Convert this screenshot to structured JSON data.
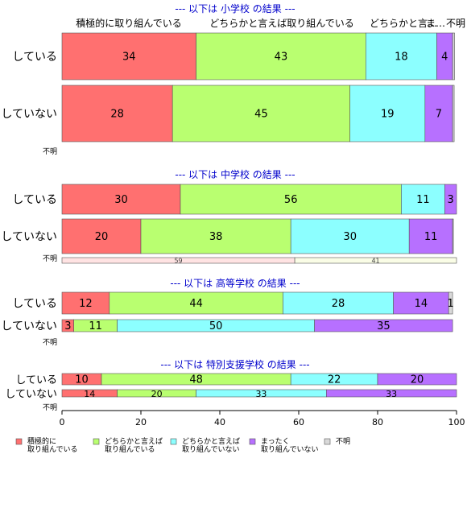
{
  "chart_data": {
    "type": "bar",
    "orientation": "horizontal",
    "stacked": true,
    "xlim": [
      0,
      100
    ],
    "xticks": [
      "0",
      "20",
      "40",
      "60",
      "80",
      "100"
    ],
    "colors": {
      "積極的に取り組んでいる": "#ff7070",
      "どちらかと言えば取り組んでいる": "#b9ff70",
      "どちらかと言えば取り組んでいない": "#8cffff",
      "まったく取り組んでいない": "#b770ff",
      "不明": "#d9d9d9"
    },
    "legend": {
      "placement": "bottom",
      "items": [
        {
          "label": [
            "積極的に",
            "取り組んでいる"
          ],
          "color": "#ff7070"
        },
        {
          "label": [
            "どちらかと言えば",
            "取り組んでいる"
          ],
          "color": "#b9ff70"
        },
        {
          "label": [
            "どちらかと言えば",
            "取り組んでいない"
          ],
          "color": "#8cffff"
        },
        {
          "label": [
            "まったく",
            "取り組んでいない"
          ],
          "color": "#b770ff"
        },
        {
          "label": [
            "不明"
          ],
          "color": "#d9d9d9"
        }
      ]
    },
    "top_labels": [
      {
        "text": "積極的に取り組んでいる",
        "seg": 0
      },
      {
        "text": "どちらかと言えば取り組んでいる",
        "seg": 1
      },
      {
        "text": "どちらかと言…",
        "seg": 2
      },
      {
        "text": "ま…",
        "seg": 3
      },
      {
        "text": "不明",
        "seg": 4
      }
    ],
    "panels": [
      {
        "title": "--- 以下は 小学校 の結果 ---",
        "rows": [
          {
            "label": "している",
            "values": [
              34,
              43,
              18,
              4,
              0.5
            ],
            "shown": [
              "34",
              "43",
              "18",
              "4",
              ""
            ]
          },
          {
            "label": "していない",
            "values": [
              28,
              45,
              19,
              7,
              0.4
            ],
            "shown": [
              "28",
              "45",
              "19",
              "7",
              ""
            ]
          }
        ],
        "unknown": {
          "label": "不明",
          "values": [],
          "colors": []
        }
      },
      {
        "title": "--- 以下は 中学校 の結果 ---",
        "rows": [
          {
            "label": "している",
            "values": [
              30,
              56,
              11,
              3,
              0
            ],
            "shown": [
              "30",
              "56",
              "11",
              "3",
              ""
            ]
          },
          {
            "label": "していない",
            "values": [
              20,
              38,
              30,
              11,
              0.2
            ],
            "shown": [
              "20",
              "38",
              "30",
              "11",
              ""
            ]
          }
        ],
        "unknown": {
          "label": "不明",
          "values": [
            59,
            41
          ],
          "colors": [
            "#ffe3e3",
            "#fafde6"
          ]
        }
      },
      {
        "title": "--- 以下は 高等学校 の結果 ---",
        "rows": [
          {
            "label": "している",
            "values": [
              12,
              44,
              28,
              14,
              1
            ],
            "shown": [
              "12",
              "44",
              "28",
              "14",
              "1"
            ]
          },
          {
            "label": "していない",
            "values": [
              3,
              11,
              50,
              35,
              0
            ],
            "shown": [
              "3",
              "11",
              "50",
              "35",
              ""
            ]
          }
        ],
        "unknown": {
          "label": "不明",
          "values": [],
          "colors": []
        }
      },
      {
        "title": "--- 以下は 特別支援学校 の結果 ---",
        "rows": [
          {
            "label": "している",
            "values": [
              10,
              48,
              22,
              20,
              0
            ],
            "shown": [
              "10",
              "48",
              "22",
              "20",
              ""
            ]
          },
          {
            "label": "していない",
            "values": [
              14,
              20,
              33,
              33,
              0
            ],
            "shown": [
              "14",
              "20",
              "33",
              "33",
              ""
            ]
          }
        ],
        "unknown": {
          "label": "不明",
          "values": [],
          "colors": []
        }
      }
    ]
  }
}
